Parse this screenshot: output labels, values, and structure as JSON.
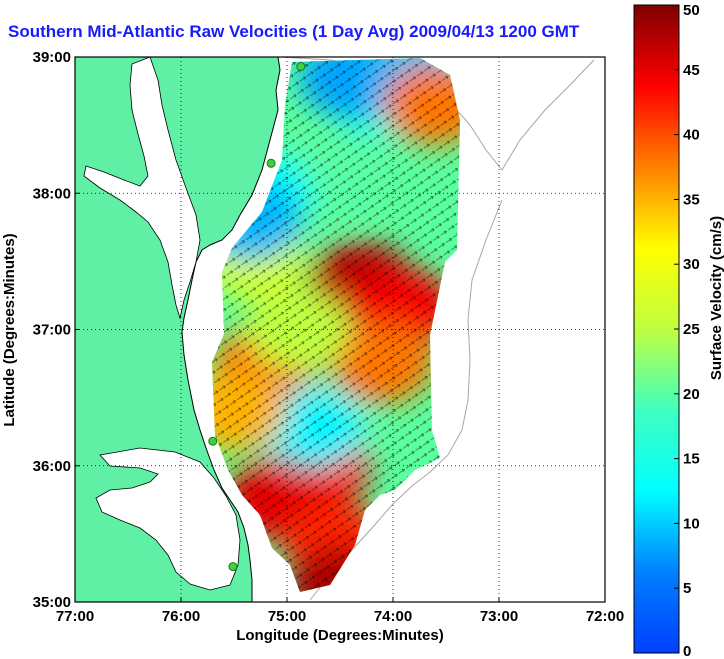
{
  "title": "Southern Mid-Atlantic Raw Velocities (1 Day Avg) 2009/04/13 1200 GMT",
  "colors": {
    "land": "#5ff0a6",
    "water": "#ffffff",
    "coast": "#000000",
    "bathymetry": "#a6a6a6",
    "station": "#3cd23c"
  },
  "chart_data": {
    "type": "heatmap",
    "xlabel": "Longitude (Degrees:Minutes)",
    "ylabel": "Latitude (Degrees:Minutes)",
    "xlim": [
      -77,
      -72
    ],
    "ylim": [
      35,
      39
    ],
    "x_ticks": [
      {
        "value": -77,
        "label": "77:00"
      },
      {
        "value": -76,
        "label": "76:00"
      },
      {
        "value": -75,
        "label": "75:00"
      },
      {
        "value": -74,
        "label": "74:00"
      },
      {
        "value": -73,
        "label": "73:00"
      },
      {
        "value": -72,
        "label": "72:00"
      }
    ],
    "y_ticks": [
      {
        "value": 35,
        "label": "35:00"
      },
      {
        "value": 36,
        "label": "36:00"
      },
      {
        "value": 37,
        "label": "37:00"
      },
      {
        "value": 38,
        "label": "38:00"
      },
      {
        "value": 39,
        "label": "39:00"
      }
    ],
    "grid": true,
    "colorbar": {
      "label": "Surface Velocity (cm/s)",
      "min": 0,
      "max": 50,
      "ticks": [
        0,
        5,
        10,
        15,
        20,
        25,
        30,
        35,
        40,
        45,
        50
      ],
      "colormap": "jet"
    },
    "stations": [
      {
        "lon": -74.87,
        "lat": 38.93
      },
      {
        "lon": -75.15,
        "lat": 38.22
      },
      {
        "lon": -75.7,
        "lat": 36.18
      },
      {
        "lon": -75.51,
        "lat": 35.26
      }
    ],
    "velocity_blobs": [
      {
        "lon": -74.3,
        "lat": 37.35,
        "speed": 47
      },
      {
        "lon": -73.9,
        "lat": 37.15,
        "speed": 44
      },
      {
        "lon": -75.2,
        "lat": 36.75,
        "speed": 38
      },
      {
        "lon": -74.1,
        "lat": 36.75,
        "speed": 38
      },
      {
        "lon": -74.7,
        "lat": 36.0,
        "speed": 43
      },
      {
        "lon": -75.1,
        "lat": 35.75,
        "speed": 45
      },
      {
        "lon": -74.55,
        "lat": 35.45,
        "speed": 42
      },
      {
        "lon": -74.5,
        "lat": 35.1,
        "speed": 48
      },
      {
        "lon": -75.3,
        "lat": 37.5,
        "speed": 27
      },
      {
        "lon": -74.9,
        "lat": 37.0,
        "speed": 25
      },
      {
        "lon": -74.6,
        "lat": 38.1,
        "speed": 20
      },
      {
        "lon": -75.25,
        "lat": 38.0,
        "speed": 13
      },
      {
        "lon": -75.35,
        "lat": 37.8,
        "speed": 9
      },
      {
        "lon": -74.1,
        "lat": 38.7,
        "speed": 14
      },
      {
        "lon": -74.4,
        "lat": 38.85,
        "speed": 8
      },
      {
        "lon": -73.8,
        "lat": 38.8,
        "speed": 9
      },
      {
        "lon": -74.75,
        "lat": 36.28,
        "speed": 12
      },
      {
        "lon": -73.6,
        "lat": 38.65,
        "speed": 38
      },
      {
        "lon": -75.5,
        "lat": 36.4,
        "speed": 35
      }
    ]
  }
}
